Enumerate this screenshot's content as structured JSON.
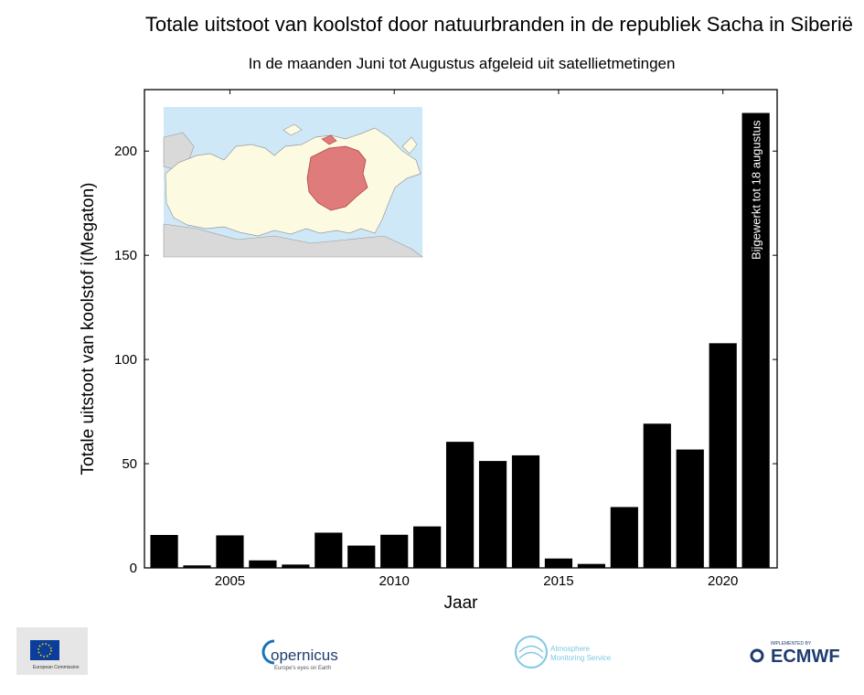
{
  "header": {
    "title": "Totale uitstoot van koolstof door natuurbranden in de republiek Sacha in Siberië",
    "subtitle": "In de maanden Juni tot Augustus afgeleid uit satellietmetingen"
  },
  "chart_data": {
    "type": "bar",
    "title": "Totale uitstoot van koolstof door natuurbranden in de republiek Sacha in Siberië",
    "subtitle": "In de maanden Juni tot Augustus afgeleid uit satellietmetingen",
    "xlabel": "Jaar",
    "ylabel": "Totale uitstoot van koolstof i(Megaton)",
    "x": [
      2003,
      2004,
      2005,
      2006,
      2007,
      2008,
      2009,
      2010,
      2011,
      2012,
      2013,
      2014,
      2015,
      2016,
      2017,
      2018,
      2019,
      2020,
      2021
    ],
    "values": [
      15.8,
      1.2,
      15.6,
      3.6,
      1.6,
      16.9,
      10.7,
      15.9,
      19.9,
      60.5,
      51.3,
      54.0,
      4.5,
      1.9,
      29.2,
      69.2,
      56.8,
      107.8,
      218.3
    ],
    "xticks": [
      2005,
      2010,
      2015,
      2020
    ],
    "yticks": [
      0,
      50,
      100,
      150,
      200
    ],
    "xlim": [
      2002.4,
      2021.65
    ],
    "ylim": [
      0,
      229.5
    ],
    "bar_color": "#000000",
    "annotation": "Bijgewerkt tot 18 augustus",
    "grid": false,
    "inset_map": "map-of-russia-with-sakha-republic-highlighted"
  },
  "colors": {
    "bars": "#000000",
    "map_sea": "#cfe8f7",
    "map_land": "#fdfae2",
    "map_highlight": "#e07b7b",
    "map_neighbors": "#d9d9d9"
  },
  "logos": {
    "eu": "European Commission",
    "copernicus": "opernicus",
    "copernicus_tagline": "Europe's eyes on Earth",
    "cams_line1": "Atmosphere",
    "cams_line2": "Monitoring Service",
    "ecmwf_prefix": "IMPLEMENTED BY",
    "ecmwf": "ECMWF"
  }
}
